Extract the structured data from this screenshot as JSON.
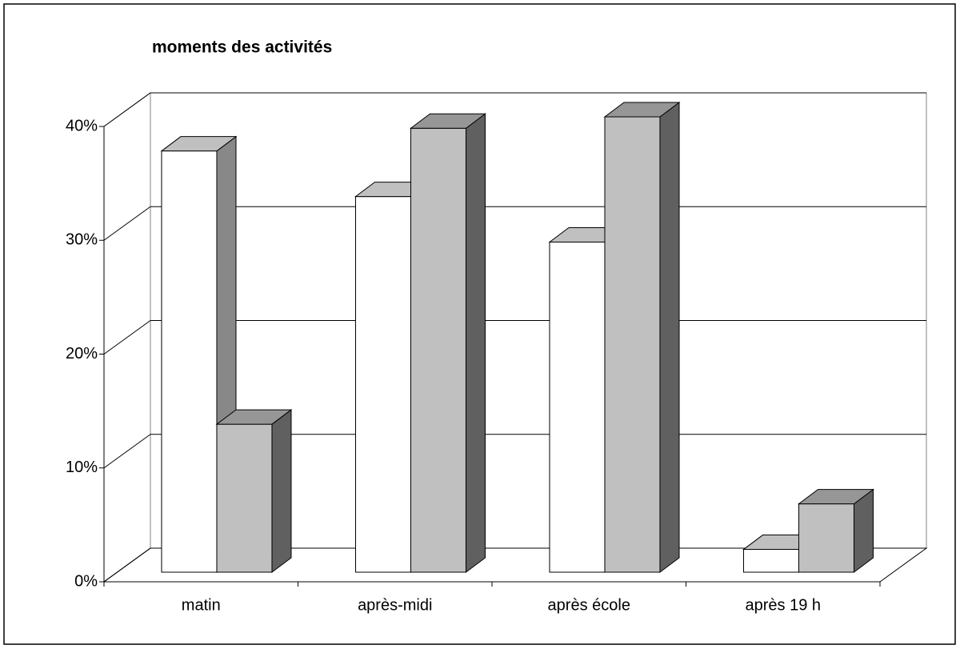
{
  "chart_data": {
    "type": "bar3d",
    "title": "moments des activités",
    "categories": [
      "matin",
      "après-midi",
      "après école",
      "après 19 h"
    ],
    "series": [
      {
        "color": "#ffffff",
        "values": [
          37,
          33,
          29,
          2
        ]
      },
      {
        "color": "#c0c0c0",
        "values": [
          13,
          39,
          40,
          6
        ]
      }
    ],
    "ylim": [
      0,
      40
    ],
    "yticks": [
      {
        "value": 0,
        "label": "0%"
      },
      {
        "value": 10,
        "label": "10%"
      },
      {
        "value": 20,
        "label": "20%"
      },
      {
        "value": 30,
        "label": "30%"
      },
      {
        "value": 40,
        "label": "40%"
      }
    ],
    "grid": true
  }
}
